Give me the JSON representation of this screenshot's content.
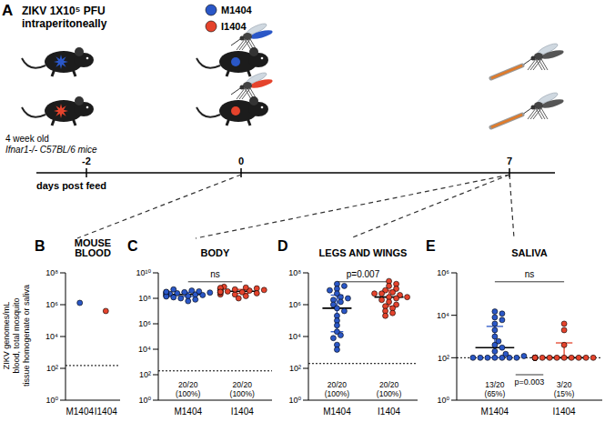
{
  "panel_a": {
    "letter": "A",
    "treatment": [
      "ZIKV 1X10⁵ PFU",
      "intraperitoneally"
    ],
    "mouse_label": [
      "4 week old",
      "Ifnar1-/- C57BL/6 mice"
    ],
    "legend": [
      {
        "name": "M1404",
        "color": "#2a57c7"
      },
      {
        "name": "I1404",
        "color": "#e5432c"
      }
    ],
    "timeline": {
      "label": "days post feed",
      "ticks": [
        -2,
        0,
        7
      ]
    }
  },
  "y_label": [
    "ZIKV genomes/mL",
    "blood, total mosquito",
    "tissue homogenate or saliva"
  ],
  "chart_data": [
    {
      "type": "scatter",
      "panel": "B",
      "title": "MOUSE BLOOD",
      "log": "y",
      "ylim": [
        1,
        100000000
      ],
      "yticks": [
        {
          "value": 1,
          "label": "10⁰"
        },
        {
          "value": 100,
          "label": "10²"
        },
        {
          "value": 10000,
          "label": "10⁴"
        },
        {
          "value": 1000000,
          "label": "10⁶"
        },
        {
          "value": 100000000,
          "label": "10⁸"
        }
      ],
      "detection_limit": 150,
      "series": [
        {
          "name": "M1404",
          "color": "#2a57c7",
          "values": [
            1300000
          ]
        },
        {
          "name": "I1404",
          "color": "#e5432c",
          "values": [
            400000
          ]
        }
      ]
    },
    {
      "type": "scatter",
      "panel": "C",
      "title": "BODY",
      "log": "y",
      "ylim": [
        1,
        10000000000
      ],
      "yticks": [
        {
          "value": 1,
          "label": "10⁰"
        },
        {
          "value": 100,
          "label": "10²"
        },
        {
          "value": 10000,
          "label": "10⁴"
        },
        {
          "value": 1000000,
          "label": "10⁶"
        },
        {
          "value": 100000000,
          "label": "10⁸"
        },
        {
          "value": 10000000000,
          "label": "10¹⁰"
        }
      ],
      "detection_limit": 200,
      "top_comparison": "ns",
      "fractions": [
        "20/20 (100%)",
        "20/20 (100%)"
      ],
      "series": [
        {
          "name": "M1404",
          "color": "#2a57c7",
          "values": [
            150000000,
            200000000,
            300000000,
            100000000,
            250000000,
            400000000,
            180000000,
            60000000,
            220000000,
            350000000,
            120000000,
            280000000,
            500000000,
            160000000,
            200000000,
            300000000,
            80000000,
            240000000,
            140000000,
            320000000
          ],
          "median": 200000000,
          "error": [
            140000000,
            300000000
          ]
        },
        {
          "name": "I1404",
          "color": "#e5432c",
          "values": [
            300000000,
            400000000,
            200000000,
            500000000,
            600000000,
            250000000,
            350000000,
            150000000,
            700000000,
            450000000,
            300000000,
            200000000,
            800000000,
            550000000,
            100000000,
            380000000,
            420000000,
            280000000,
            650000000,
            320000000
          ],
          "median": 360000000,
          "error": [
            250000000,
            500000000
          ]
        }
      ]
    },
    {
      "type": "scatter",
      "panel": "D",
      "title": "LEGS AND WINGS",
      "log": "y",
      "ylim": [
        1,
        100000000
      ],
      "yticks": [
        {
          "value": 1,
          "label": "10⁰"
        },
        {
          "value": 100,
          "label": "10²"
        },
        {
          "value": 10000,
          "label": "10⁴"
        },
        {
          "value": 1000000,
          "label": "10⁶"
        },
        {
          "value": 100000000,
          "label": "10⁸"
        }
      ],
      "detection_limit": 200,
      "top_comparison": "p=0.007",
      "fractions": [
        "20/20 (100%)",
        "20/20 (100%)"
      ],
      "series": [
        {
          "name": "M1404",
          "color": "#2a57c7",
          "values": [
            20000000,
            15000000,
            10000000,
            8000000,
            5000000,
            3000000,
            2000000,
            1500000,
            1000000,
            600000,
            400000,
            200000,
            100000,
            50000,
            20000,
            12000,
            8000,
            3000,
            1500,
            2500000
          ],
          "median": 600000,
          "error": [
            20000,
            4000000
          ]
        },
        {
          "name": "I1404",
          "color": "#e5432c",
          "values": [
            30000000,
            20000000,
            15000000,
            10000000,
            8000000,
            6000000,
            5000000,
            4000000,
            3000000,
            2500000,
            2000000,
            1500000,
            1000000,
            800000,
            600000,
            400000,
            300000,
            200000,
            5000000,
            3000000
          ],
          "median": 3000000,
          "error": [
            800000,
            8000000
          ]
        }
      ]
    },
    {
      "type": "scatter",
      "panel": "E",
      "title": "SALIVA",
      "log": "y",
      "ylim": [
        1,
        1000000
      ],
      "yticks": [
        {
          "value": 1,
          "label": "10⁰"
        },
        {
          "value": 100,
          "label": "10²"
        },
        {
          "value": 10000,
          "label": "10⁴"
        },
        {
          "value": 1000000,
          "label": "10⁶"
        }
      ],
      "detection_limit": 100,
      "top_comparison": "ns",
      "bottom_comparison": "p=0.003",
      "fractions": [
        "13/20 (65%)",
        "3/20 (15%)"
      ],
      "series": [
        {
          "name": "M1404",
          "color": "#2a57c7",
          "values": [
            15000,
            100,
            12000,
            8000,
            100,
            6000,
            4000,
            100,
            2000,
            1000,
            100,
            600,
            400,
            100,
            300,
            200,
            100,
            150,
            100,
            120
          ],
          "median": 300,
          "error": [
            100,
            3000
          ]
        },
        {
          "name": "I1404",
          "color": "#e5432c",
          "values": [
            4000,
            100,
            100,
            2000,
            100,
            100,
            100,
            400,
            100,
            100,
            100,
            100,
            100,
            100,
            100,
            100,
            100,
            100,
            100,
            100
          ],
          "median": 100,
          "error": [
            100,
            500
          ]
        }
      ]
    }
  ]
}
